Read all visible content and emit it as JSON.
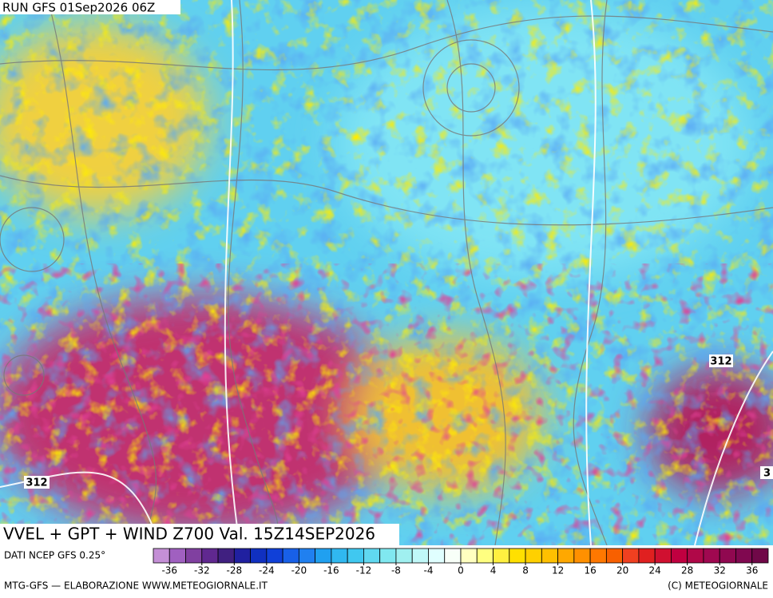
{
  "header": {
    "run": "RUN GFS 01Sep2026 06Z"
  },
  "map": {
    "contour_labels": [
      "312",
      "312",
      "3"
    ]
  },
  "footer": {
    "title": "VVEL + GPT + WIND Z700 Val. 15Z14SEP2026",
    "source": "DATI NCEP GFS 0.25°",
    "credit": "MTG-GFS — ELABORAZIONE WWW.METEOGIORNALE.IT",
    "copyright": "(C) METEOGIORNALE"
  },
  "legend": {
    "lim": [
      -38,
      38
    ],
    "ticks": [
      -36,
      -32,
      -28,
      -24,
      -20,
      -16,
      -12,
      -8,
      -4,
      0,
      4,
      8,
      12,
      16,
      20,
      24,
      28,
      32,
      36
    ],
    "colors": [
      "#c48fd6",
      "#a060c0",
      "#8040a0",
      "#602890",
      "#402080",
      "#2020a0",
      "#1030c0",
      "#1040d8",
      "#1860e8",
      "#2080f0",
      "#20a0f0",
      "#30b8f0",
      "#40c8f0",
      "#60d8f0",
      "#80e8f0",
      "#a0f0f0",
      "#c0f8f8",
      "#e0ffff",
      "#f8fff8",
      "#ffffc0",
      "#ffff80",
      "#fff040",
      "#ffe000",
      "#ffd000",
      "#ffc000",
      "#ffa800",
      "#ff9000",
      "#ff7800",
      "#f86000",
      "#f04020",
      "#e02020",
      "#d01030",
      "#c00040",
      "#b00848",
      "#a00850",
      "#900850",
      "#800850",
      "#700848"
    ]
  }
}
